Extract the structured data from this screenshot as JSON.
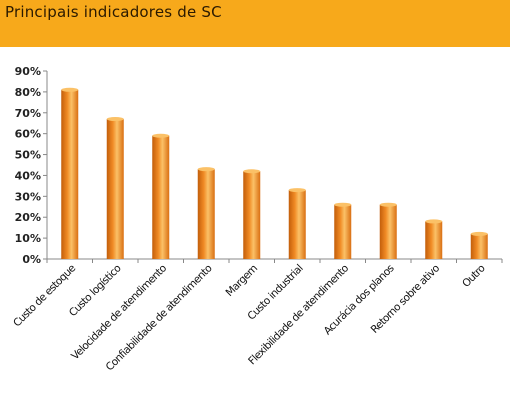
{
  "header": {
    "title": "Principais indicadores de SC",
    "background_color": "#f7a91b"
  },
  "chart_data": {
    "type": "bar",
    "title": "Principais indicadores de SC",
    "xlabel": "",
    "ylabel": "",
    "categories": [
      "Custo de estoque",
      "Custo logístico",
      "Velocidade de atendimento",
      "Confiabilidade de atendimento",
      "Margem",
      "Custo industrial",
      "Flexibilidade de atendimento",
      "Acurácia dos planos",
      "Retorno sobre ativo",
      "Outro"
    ],
    "values": [
      81,
      67,
      59,
      43,
      42,
      33,
      26,
      26,
      18,
      12
    ],
    "ylim": [
      0,
      90
    ],
    "yticks": [
      "0%",
      "10%",
      "20%",
      "30%",
      "40%",
      "50%",
      "60%",
      "70%",
      "80%",
      "90%"
    ],
    "grid": false,
    "legend": "none",
    "bar_color": "#f08a24",
    "bar_highlight": "#fbc167",
    "bar_shadow": "#c25e0b"
  }
}
